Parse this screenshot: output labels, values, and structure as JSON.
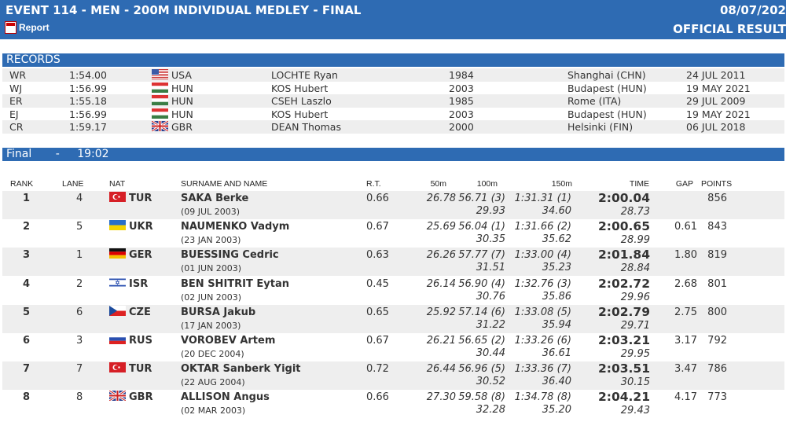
{
  "header": {
    "title": "EVENT 114 - MEN - 200M INDIVIDUAL MEDLEY - FINAL",
    "date": "08/07/202",
    "report_label": "Report",
    "official": "OFFICIAL RESULT"
  },
  "records": {
    "title": "RECORDS",
    "rows": [
      {
        "type": "WR",
        "time": "1:54.00",
        "nat": "USA",
        "name": "LOCHTE Ryan",
        "year": "1984",
        "place": "Shanghai (CHN)",
        "date": "24 JUL 2011"
      },
      {
        "type": "WJ",
        "time": "1:56.99",
        "nat": "HUN",
        "name": "KOS Hubert",
        "year": "2003",
        "place": "Budapest (HUN)",
        "date": "19 MAY 2021"
      },
      {
        "type": "ER",
        "time": "1:55.18",
        "nat": "HUN",
        "name": "CSEH Laszlo",
        "year": "1985",
        "place": "Rome (ITA)",
        "date": "29 JUL 2009"
      },
      {
        "type": "EJ",
        "time": "1:56.99",
        "nat": "HUN",
        "name": "KOS Hubert",
        "year": "2003",
        "place": "Budapest (HUN)",
        "date": "19 MAY 2021"
      },
      {
        "type": "CR",
        "time": "1:59.17",
        "nat": "GBR",
        "name": "DEAN Thomas",
        "year": "2000",
        "place": "Helsinki (FIN)",
        "date": "06 JUL 2018"
      }
    ]
  },
  "final": {
    "label": "Final",
    "sep": "-",
    "time": "19:02",
    "columns": {
      "rank": "RANK",
      "lane": "LANE",
      "nat": "NAT",
      "name": "SURNAME AND NAME",
      "rt": "R.T.",
      "s50": "50m",
      "s100": "100m",
      "s150": "150m",
      "time": "TIME",
      "gap": "GAP",
      "points": "POINTS"
    },
    "rows": [
      {
        "rank": "1",
        "lane": "4",
        "nat": "TUR",
        "name": "SAKA Berke",
        "dob": "(09 JUL 2003)",
        "rt": "0.66",
        "s50": "26.78",
        "s100": "56.71 (3)",
        "s100b": "29.93",
        "s150": "1:31.31 (1)",
        "s150b": "34.60",
        "time": "2:00.04",
        "timeb": "28.73",
        "gap": "",
        "points": "856"
      },
      {
        "rank": "2",
        "lane": "5",
        "nat": "UKR",
        "name": "NAUMENKO Vadym",
        "dob": "(23 JAN 2003)",
        "rt": "0.67",
        "s50": "25.69",
        "s100": "56.04 (1)",
        "s100b": "30.35",
        "s150": "1:31.66 (2)",
        "s150b": "35.62",
        "time": "2:00.65",
        "timeb": "28.99",
        "gap": "0.61",
        "points": "843"
      },
      {
        "rank": "3",
        "lane": "1",
        "nat": "GER",
        "name": "BUESSING Cedric",
        "dob": "(01 JUN 2003)",
        "rt": "0.63",
        "s50": "26.26",
        "s100": "57.77 (7)",
        "s100b": "31.51",
        "s150": "1:33.00 (4)",
        "s150b": "35.23",
        "time": "2:01.84",
        "timeb": "28.84",
        "gap": "1.80",
        "points": "819"
      },
      {
        "rank": "4",
        "lane": "2",
        "nat": "ISR",
        "name": "BEN SHITRIT Eytan",
        "dob": "(02 JUN 2003)",
        "rt": "0.45",
        "s50": "26.14",
        "s100": "56.90 (4)",
        "s100b": "30.76",
        "s150": "1:32.76 (3)",
        "s150b": "35.86",
        "time": "2:02.72",
        "timeb": "29.96",
        "gap": "2.68",
        "points": "801"
      },
      {
        "rank": "5",
        "lane": "6",
        "nat": "CZE",
        "name": "BURSA Jakub",
        "dob": "(17 JAN 2003)",
        "rt": "0.65",
        "s50": "25.92",
        "s100": "57.14 (6)",
        "s100b": "31.22",
        "s150": "1:33.08 (5)",
        "s150b": "35.94",
        "time": "2:02.79",
        "timeb": "29.71",
        "gap": "2.75",
        "points": "800"
      },
      {
        "rank": "6",
        "lane": "3",
        "nat": "RUS",
        "name": "VOROBEV Artem",
        "dob": "(20 DEC 2004)",
        "rt": "0.67",
        "s50": "26.21",
        "s100": "56.65 (2)",
        "s100b": "30.44",
        "s150": "1:33.26 (6)",
        "s150b": "36.61",
        "time": "2:03.21",
        "timeb": "29.95",
        "gap": "3.17",
        "points": "792"
      },
      {
        "rank": "7",
        "lane": "7",
        "nat": "TUR",
        "name": "OKTAR Sanberk Yigit",
        "dob": "(22 AUG 2004)",
        "rt": "0.72",
        "s50": "26.44",
        "s100": "56.96 (5)",
        "s100b": "30.52",
        "s150": "1:33.36 (7)",
        "s150b": "36.40",
        "time": "2:03.51",
        "timeb": "30.15",
        "gap": "3.47",
        "points": "786"
      },
      {
        "rank": "8",
        "lane": "8",
        "nat": "GBR",
        "name": "ALLISON Angus",
        "dob": "(02 MAR 2003)",
        "rt": "0.66",
        "s50": "27.30",
        "s100": "59.58 (8)",
        "s100b": "32.28",
        "s150": "1:34.78 (8)",
        "s150b": "35.20",
        "time": "2:04.21",
        "timeb": "29.43",
        "gap": "4.17",
        "points": "773"
      }
    ]
  }
}
